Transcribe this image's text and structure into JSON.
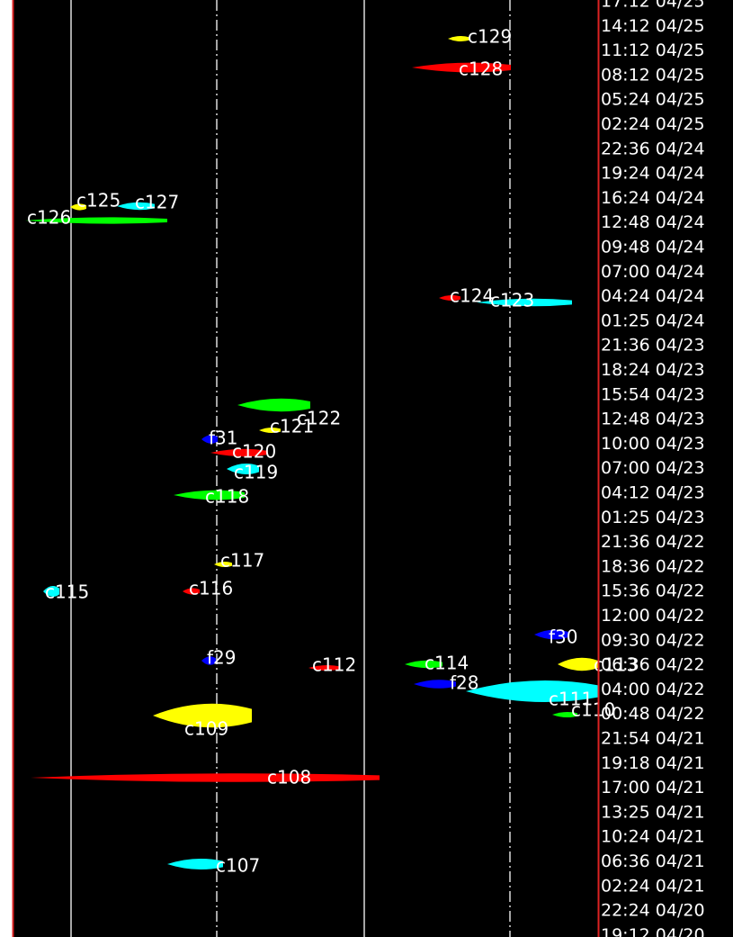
{
  "time_labels": [
    "17:12 04/25",
    "14:12 04/25",
    "11:12 04/25",
    "08:12 04/25",
    "05:24 04/25",
    "02:24 04/25",
    "22:36 04/24",
    "19:24 04/24",
    "16:24 04/24",
    "12:48 04/24",
    "09:48 04/24",
    "07:00 04/24",
    "04:24 04/24",
    "01:25 04/24",
    "21:36 04/23",
    "18:24 04/23",
    "15:54 04/23",
    "12:48 04/23",
    "10:00 04/23",
    "07:00 04/23",
    "04:12 04/23",
    "01:25 04/23",
    "21:36 04/22",
    "18:36 04/22",
    "15:36 04/22",
    "12:00 04/22",
    "09:30 04/22",
    "06:36 04/22",
    "04:00 04/22",
    "00:48 04/22",
    "21:54 04/21",
    "19:18 04/21",
    "17:00 04/21",
    "13:25 04/21",
    "10:24 04/21",
    "06:36 04/21",
    "02:24 04/21",
    "22:24 04/20",
    "19:12 04/20"
  ],
  "tracks": [
    {
      "label": "c129",
      "color": "#ffff00"
    },
    {
      "label": "c128",
      "color": "#ff0000"
    },
    {
      "label": "c125",
      "color": "#ffff00"
    },
    {
      "label": "c127",
      "color": "#00ffff"
    },
    {
      "label": "c126",
      "color": "#00ff00"
    },
    {
      "label": "c124",
      "color": "#ff0000"
    },
    {
      "label": "c123",
      "color": "#00ffff"
    },
    {
      "label": "c122",
      "color": "#00ff00"
    },
    {
      "label": "c121",
      "color": "#ffff00"
    },
    {
      "label": "f31",
      "color": "#0000ff"
    },
    {
      "label": "c120",
      "color": "#ff0000"
    },
    {
      "label": "c119",
      "color": "#00ffff"
    },
    {
      "label": "c118",
      "color": "#00ff00"
    },
    {
      "label": "c117",
      "color": "#ffff00"
    },
    {
      "label": "c116",
      "color": "#ff0000"
    },
    {
      "label": "c115",
      "color": "#00ffff"
    },
    {
      "label": "f29",
      "color": "#0000ff"
    },
    {
      "label": "c112",
      "color": "#ff0000"
    },
    {
      "label": "c114",
      "color": "#00ff00"
    },
    {
      "label": "f28",
      "color": "#0000ff"
    },
    {
      "label": "f30",
      "color": "#0000ff"
    },
    {
      "label": "c113",
      "color": "#ffff00"
    },
    {
      "label": "c111",
      "color": "#00ffff"
    },
    {
      "label": "c110",
      "color": "#00ff00"
    },
    {
      "label": "c109",
      "color": "#ffff00"
    },
    {
      "label": "c108",
      "color": "#ff0000"
    },
    {
      "label": "c107",
      "color": "#00ffff"
    }
  ]
}
